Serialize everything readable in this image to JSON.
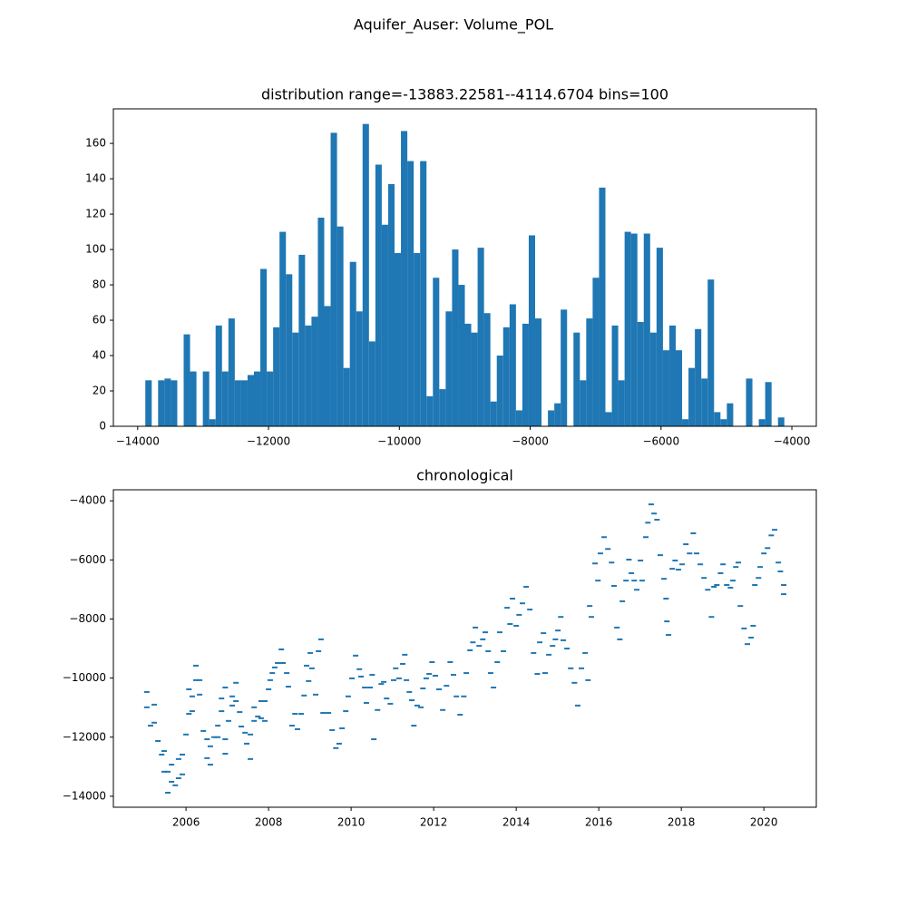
{
  "title": "Aquifer_Auser: Volume_POL",
  "chart_data": [
    {
      "type": "histogram",
      "title": "distribution range=-13883.22581--4114.6704 bins=100",
      "color": "#1f77b4",
      "bins": [
        -13883.23,
        -13785.54,
        -13687.86,
        -13590.17,
        -13492.49,
        -13394.8,
        -13297.11,
        -13199.43,
        -13101.74,
        -13004.06,
        -12906.37,
        -12808.68,
        -12711.0,
        -12613.31,
        -12515.63,
        -12417.94,
        -12320.26,
        -12222.57,
        -12124.88,
        -12027.2,
        -11929.51,
        -11831.83,
        -11734.14,
        -11636.46,
        -11538.77,
        -11441.08,
        -11343.4,
        -11245.71,
        -11148.03,
        -11050.34,
        -10952.66,
        -10854.97,
        -10757.29,
        -10659.6,
        -10561.91,
        -10464.23,
        -10366.54,
        -10268.86,
        -10171.17,
        -10073.49,
        -9975.8,
        -9878.11,
        -9780.43,
        -9682.74,
        -9585.06,
        -9487.37,
        -9389.69,
        -9292.0,
        -9194.31,
        -9096.63,
        -8998.94,
        -8901.26,
        -8803.57,
        -8705.89,
        -8608.2,
        -8510.51,
        -8412.83,
        -8315.14,
        -8217.46,
        -8119.77,
        -8022.09,
        -7924.4,
        -7826.71,
        -7729.03,
        -7631.34,
        -7533.66,
        -7435.97,
        -7338.29,
        -7240.6,
        -7142.91,
        -7045.23,
        -6947.54,
        -6849.86,
        -6752.17,
        -6654.49,
        -6556.8,
        -6459.12,
        -6361.43,
        -6263.74,
        -6166.06,
        -6068.37,
        -5970.69,
        -5873.0,
        -5775.32,
        -5677.63,
        -5579.94,
        -5482.26,
        -5384.57,
        -5286.89,
        -5189.2,
        -5091.52,
        -4993.83,
        -4896.14,
        -4798.46,
        -4700.77,
        -4603.09,
        -4505.4,
        -4407.72,
        -4310.03,
        -4212.34,
        -4114.67
      ],
      "values": [
        26,
        0,
        26,
        27,
        26,
        0,
        52,
        31,
        0,
        31,
        4,
        57,
        31,
        61,
        26,
        26,
        29,
        31,
        89,
        31,
        56,
        110,
        86,
        53,
        97,
        57,
        62,
        118,
        68,
        166,
        113,
        33,
        93,
        65,
        171,
        48,
        148,
        114,
        137,
        98,
        167,
        150,
        98,
        150,
        17,
        84,
        21,
        65,
        100,
        80,
        58,
        53,
        101,
        64,
        14,
        40,
        56,
        69,
        9,
        58,
        108,
        61,
        0,
        9,
        13,
        66,
        0,
        53,
        26,
        61,
        84,
        135,
        8,
        57,
        26,
        110,
        109,
        59,
        109,
        53,
        101,
        43,
        57,
        43,
        4,
        33,
        55,
        27,
        83,
        8,
        4,
        13,
        0,
        0,
        27,
        0,
        4,
        25,
        0,
        5
      ],
      "xlim": [
        -14371.66,
        -3626.24
      ],
      "ylim": [
        0,
        179.55
      ],
      "xticks": [
        {
          "value": -14000,
          "label": "−14000"
        },
        {
          "value": -12000,
          "label": "−12000"
        },
        {
          "value": -10000,
          "label": "−10000"
        },
        {
          "value": -8000,
          "label": "−8000"
        },
        {
          "value": -6000,
          "label": "−6000"
        },
        {
          "value": -4000,
          "label": "−4000"
        }
      ],
      "yticks": [
        0,
        20,
        40,
        60,
        80,
        100,
        120,
        140,
        160
      ]
    },
    {
      "type": "scatter",
      "title": "chronological",
      "color": "#1f77b4",
      "x": [
        2005.05,
        2005.05,
        2005.14,
        2005.23,
        2005.23,
        2005.32,
        2005.41,
        2005.47,
        2005.47,
        2005.56,
        2005.56,
        2005.65,
        2005.65,
        2005.74,
        2005.82,
        2005.82,
        2005.91,
        2005.91,
        2006.0,
        2006.07,
        2006.07,
        2006.15,
        2006.15,
        2006.24,
        2006.24,
        2006.33,
        2006.33,
        2006.42,
        2006.51,
        2006.51,
        2006.59,
        2006.59,
        2006.68,
        2006.77,
        2006.77,
        2006.86,
        2006.86,
        2006.95,
        2006.95,
        2006.95,
        2007.03,
        2007.12,
        2007.12,
        2007.21,
        2007.21,
        2007.3,
        2007.34,
        2007.43,
        2007.47,
        2007.56,
        2007.56,
        2007.65,
        2007.65,
        2007.74,
        2007.82,
        2007.82,
        2007.91,
        2007.91,
        2008.0,
        2008.04,
        2008.09,
        2008.15,
        2008.22,
        2008.31,
        2008.35,
        2008.44,
        2008.48,
        2008.57,
        2008.64,
        2008.7,
        2008.79,
        2008.86,
        2008.92,
        2008.97,
        2009.01,
        2009.05,
        2009.14,
        2009.21,
        2009.27,
        2009.32,
        2009.45,
        2009.54,
        2009.63,
        2009.71,
        2009.78,
        2009.87,
        2009.93,
        2010.02,
        2010.11,
        2010.2,
        2010.24,
        2010.33,
        2010.37,
        2010.46,
        2010.51,
        2010.55,
        2010.64,
        2010.73,
        2010.79,
        2010.86,
        2010.95,
        2011.03,
        2011.08,
        2011.16,
        2011.25,
        2011.3,
        2011.34,
        2011.41,
        2011.47,
        2011.52,
        2011.6,
        2011.69,
        2011.74,
        2011.82,
        2011.89,
        2011.96,
        2012.04,
        2012.13,
        2012.22,
        2012.31,
        2012.4,
        2012.48,
        2012.55,
        2012.64,
        2012.73,
        2012.79,
        2012.88,
        2012.95,
        2013.01,
        2013.1,
        2013.19,
        2013.25,
        2013.32,
        2013.38,
        2013.45,
        2013.54,
        2013.6,
        2013.69,
        2013.78,
        2013.85,
        2013.91,
        2014.0,
        2014.07,
        2014.15,
        2014.24,
        2014.33,
        2014.42,
        2014.51,
        2014.57,
        2014.66,
        2014.7,
        2014.79,
        2014.88,
        2014.95,
        2015.01,
        2015.08,
        2015.14,
        2015.23,
        2015.32,
        2015.41,
        2015.49,
        2015.58,
        2015.67,
        2015.74,
        2015.78,
        2015.82,
        2015.91,
        2015.98,
        2016.04,
        2016.13,
        2016.22,
        2016.31,
        2016.37,
        2016.44,
        2016.51,
        2016.57,
        2016.66,
        2016.73,
        2016.79,
        2016.86,
        2016.92,
        2017.01,
        2017.05,
        2017.14,
        2017.19,
        2017.27,
        2017.34,
        2017.41,
        2017.49,
        2017.58,
        2017.63,
        2017.65,
        2017.69,
        2017.78,
        2017.85,
        2017.93,
        2018.02,
        2018.11,
        2018.2,
        2018.29,
        2018.37,
        2018.46,
        2018.55,
        2018.64,
        2018.73,
        2018.79,
        2018.86,
        2018.95,
        2019.01,
        2019.1,
        2019.19,
        2019.25,
        2019.32,
        2019.38,
        2019.43,
        2019.52,
        2019.6,
        2019.69,
        2019.74,
        2019.78,
        2019.87,
        2019.91,
        2020.0,
        2020.09,
        2020.18,
        2020.26,
        2020.35,
        2020.4,
        2020.48,
        2020.48
      ],
      "values": [
        -10470,
        -10990,
        -11610,
        -10900,
        -11510,
        -12130,
        -12590,
        -12470,
        -13170,
        -13170,
        -13880,
        -12930,
        -13510,
        -13630,
        -13390,
        -12740,
        -13260,
        -12590,
        -11910,
        -11210,
        -10380,
        -11120,
        -10620,
        -10070,
        -9580,
        -10070,
        -10560,
        -11790,
        -12070,
        -12710,
        -12930,
        -12310,
        -12000,
        -12000,
        -11610,
        -11120,
        -10690,
        -10320,
        -12070,
        -12560,
        -11450,
        -10930,
        -10620,
        -10160,
        -10780,
        -11150,
        -11640,
        -11850,
        -12220,
        -12740,
        -11910,
        -11450,
        -10990,
        -11300,
        -10780,
        -11360,
        -10780,
        -11450,
        -10380,
        -10070,
        -9830,
        -9640,
        -9490,
        -9030,
        -9490,
        -9830,
        -10290,
        -11610,
        -11210,
        -11730,
        -11210,
        -10590,
        -9580,
        -10100,
        -9150,
        -9670,
        -10560,
        -9090,
        -8690,
        -11180,
        -11180,
        -11760,
        -12370,
        -12220,
        -11700,
        -11120,
        -10620,
        -10010,
        -9240,
        -9700,
        -9950,
        -10320,
        -10840,
        -10320,
        -9890,
        -12070,
        -11080,
        -10200,
        -10130,
        -10690,
        -10870,
        -10070,
        -9670,
        -10010,
        -9520,
        -9210,
        -10070,
        -10470,
        -10750,
        -11610,
        -10930,
        -10990,
        -10350,
        -10010,
        -9860,
        -9460,
        -9920,
        -10380,
        -11080,
        -10260,
        -9460,
        -9890,
        -10620,
        -11240,
        -10620,
        -9830,
        -9060,
        -8790,
        -8290,
        -8910,
        -8690,
        -8450,
        -9090,
        -9830,
        -10320,
        -9460,
        -8450,
        -9090,
        -7620,
        -8170,
        -7310,
        -8230,
        -7860,
        -7470,
        -6910,
        -7680,
        -9150,
        -9860,
        -8790,
        -8480,
        -9830,
        -9210,
        -8910,
        -8690,
        -8390,
        -7930,
        -8720,
        -9000,
        -9670,
        -10160,
        -10930,
        -9670,
        -9150,
        -10070,
        -7560,
        -7930,
        -6120,
        -6700,
        -5780,
        -5230,
        -5630,
        -6090,
        -6880,
        -8290,
        -8690,
        -7400,
        -6700,
        -5990,
        -6450,
        -6700,
        -7010,
        -6020,
        -6700,
        -5230,
        -4740,
        -4120,
        -4430,
        -4640,
        -5840,
        -6640,
        -7310,
        -8080,
        -8540,
        -6300,
        -6020,
        -6330,
        -6150,
        -5470,
        -5780,
        -5100,
        -5780,
        -6150,
        -6610,
        -7010,
        -7930,
        -6910,
        -6850,
        -6450,
        -6150,
        -6850,
        -6940,
        -6700,
        -6240,
        -6090,
        -7560,
        -8320,
        -8850,
        -8630,
        -8230,
        -6850,
        -6610,
        -6240,
        -5780,
        -5600,
        -5170,
        -4980,
        -6090,
        -6390,
        -6850,
        -7160
      ],
      "xlim": [
        2004.24,
        2021.27
      ],
      "ylim": [
        -14371.66,
        -3626.24
      ],
      "xticks": [
        2006,
        2008,
        2010,
        2012,
        2014,
        2016,
        2018,
        2020
      ],
      "yticks": [
        {
          "value": -14000,
          "label": "−14000"
        },
        {
          "value": -12000,
          "label": "−12000"
        },
        {
          "value": -10000,
          "label": "−10000"
        },
        {
          "value": -8000,
          "label": "−8000"
        },
        {
          "value": -6000,
          "label": "−6000"
        },
        {
          "value": -4000,
          "label": "−4000"
        }
      ]
    }
  ]
}
